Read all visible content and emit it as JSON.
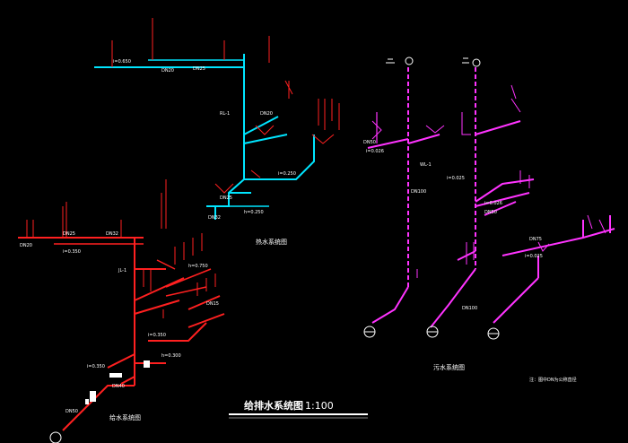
{
  "drawing": {
    "main_title": "给排水系统图",
    "scale": "1:100",
    "captions": {
      "cold_water": "给水系统图",
      "hot_water": "热水系统图",
      "drain_bottom": "污水系统图"
    },
    "note": "注：图中DN为公称直径",
    "colors": {
      "background": "#000000",
      "cold_pipe": "#ff2020",
      "hot_pipe": "#00e5ff",
      "drain_pipe": "#ff33ff",
      "text": "#ffffff"
    }
  },
  "annotations": {
    "cold": [
      "DN20",
      "DN25",
      "DN32",
      "i=0.350",
      "JL-1",
      "h=0.750",
      "DN15",
      "i=0.350",
      "h=0.300",
      "i=0.350",
      "DN40",
      "DN50"
    ],
    "hot": [
      "i=0.650",
      "DN20",
      "DN25",
      "RL-1",
      "DN20",
      "i=0.250",
      "DN25",
      "h=0.250",
      "DN32"
    ],
    "drain": [
      "DN50",
      "i=0.026",
      "WL-1",
      "DN100",
      "i=0.025",
      "i=0.026",
      "DN50",
      "DN75",
      "DN100",
      "i=0.025"
    ],
    "outlets": [
      "W",
      "W",
      "W",
      "J"
    ]
  }
}
